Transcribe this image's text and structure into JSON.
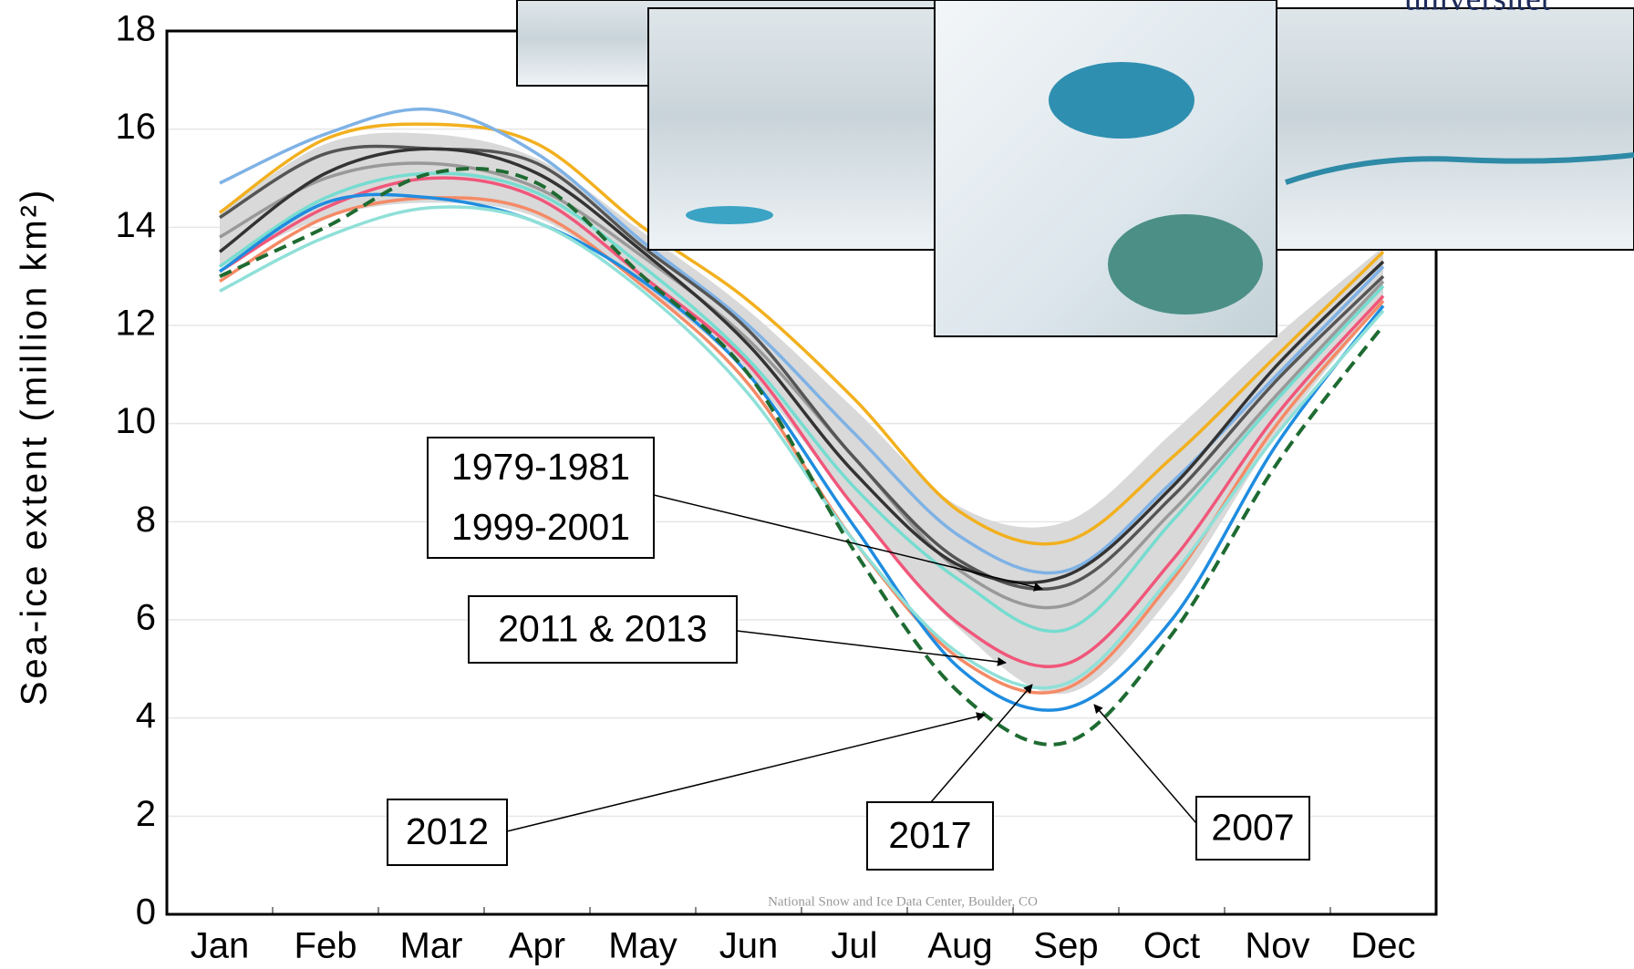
{
  "chart_data": {
    "type": "line",
    "y_label": "Sea-ice extent (million km²)",
    "source": "National Snow and Ice Data Center, Boulder, CO",
    "logo_text": "universitet",
    "categories": [
      "Jan",
      "Feb",
      "Mar",
      "Apr",
      "May",
      "Jun",
      "Jul",
      "Aug",
      "Sep",
      "Oct",
      "Nov",
      "Dec"
    ],
    "ylim": [
      0,
      18
    ],
    "yticks": [
      0,
      2,
      4,
      6,
      8,
      10,
      12,
      14,
      16,
      18
    ],
    "grid": true,
    "band": {
      "color": "#d9d9d9",
      "upper": [
        14.3,
        15.7,
        15.9,
        15.4,
        13.9,
        12.3,
        10.3,
        8.3,
        8.0,
        9.8,
        11.8,
        13.6
      ],
      "lower": [
        13.2,
        14.2,
        14.5,
        14.2,
        12.8,
        11.0,
        8.3,
        5.8,
        4.5,
        6.5,
        9.8,
        12.5
      ]
    },
    "series": [
      {
        "color": "#999999",
        "values": [
          13.8,
          15.0,
          15.3,
          14.8,
          13.4,
          11.7,
          9.3,
          7.0,
          6.3,
          8.2,
          10.6,
          12.9
        ]
      },
      {
        "color": "#f2b01e",
        "values": [
          14.3,
          15.8,
          16.1,
          15.7,
          14.0,
          12.5,
          10.5,
          8.2,
          7.6,
          9.3,
          11.4,
          13.5
        ]
      },
      {
        "color": "#7fb2e5",
        "values": [
          14.9,
          15.9,
          16.4,
          15.5,
          13.7,
          12.0,
          9.8,
          7.7,
          7.0,
          8.8,
          11.0,
          13.2
        ]
      },
      {
        "color": "#555555",
        "values": [
          14.2,
          15.5,
          15.6,
          15.3,
          13.6,
          11.9,
          9.3,
          7.2,
          6.7,
          8.5,
          10.9,
          13.0
        ]
      },
      {
        "color": "#333333",
        "values": [
          13.5,
          15.1,
          15.6,
          15.1,
          13.5,
          11.6,
          9.0,
          7.1,
          6.9,
          8.7,
          11.2,
          13.3
        ]
      },
      {
        "color": "#76dcd0",
        "values": [
          13.2,
          14.6,
          15.1,
          14.7,
          13.2,
          11.3,
          8.7,
          6.8,
          5.8,
          8.0,
          10.5,
          12.8
        ]
      },
      {
        "color": "#f0577a",
        "values": [
          13.1,
          14.4,
          15.0,
          14.6,
          13.0,
          11.2,
          8.3,
          5.9,
          5.1,
          7.2,
          10.2,
          12.6
        ]
      },
      {
        "color": "#f58a66",
        "values": [
          12.9,
          14.2,
          14.6,
          14.3,
          12.8,
          10.8,
          7.6,
          5.2,
          4.6,
          6.8,
          10.0,
          12.5
        ]
      },
      {
        "color": "#1f8ce0",
        "values": [
          13.1,
          14.5,
          14.6,
          14.1,
          12.9,
          11.0,
          7.9,
          5.0,
          4.2,
          6.0,
          9.6,
          12.4
        ]
      },
      {
        "color": "#8fe0d8",
        "values": [
          12.7,
          13.8,
          14.4,
          14.1,
          12.7,
          10.6,
          7.6,
          5.3,
          4.7,
          6.9,
          9.8,
          12.3
        ]
      },
      {
        "color": "#1e6b32",
        "dashed": true,
        "values": [
          13.0,
          14.0,
          15.1,
          14.9,
          13.0,
          11.0,
          7.4,
          4.5,
          3.5,
          5.7,
          9.2,
          12.0
        ]
      }
    ],
    "annotations": [
      {
        "text": [
          "1979-1981",
          "1999-2001"
        ]
      },
      {
        "text": [
          "2011 & 2013"
        ]
      },
      {
        "text": [
          "2012"
        ]
      },
      {
        "text": [
          "2017"
        ]
      },
      {
        "text": [
          "2007"
        ]
      }
    ]
  }
}
